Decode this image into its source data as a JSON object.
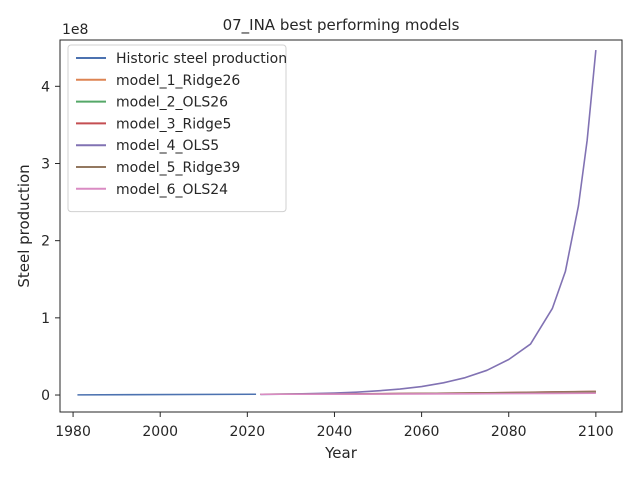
{
  "chart_data": {
    "type": "line",
    "title": "07_INA best performing models",
    "xlabel": "Year",
    "ylabel": "Steel production",
    "y_multiplier_label": "1e8",
    "xlim": [
      1977,
      2106
    ],
    "ylim": [
      -0.22,
      4.6
    ],
    "xticks": [
      1980,
      2000,
      2020,
      2040,
      2060,
      2080,
      2100
    ],
    "yticks": [
      0,
      1,
      2,
      3,
      4
    ],
    "legend_position": "upper left",
    "grid": false,
    "series": [
      {
        "name": "Historic steel production",
        "color": "#4c72b0",
        "x": [
          1981,
          2022
        ],
        "y": [
          0.002,
          0.01
        ]
      },
      {
        "name": "model_1_Ridge26",
        "color": "#dd8452",
        "x": [
          2023,
          2030,
          2040,
          2050,
          2060,
          2070,
          2080,
          2090,
          2100
        ],
        "y": [
          0.01,
          0.01,
          0.012,
          0.015,
          0.018,
          0.022,
          0.026,
          0.031,
          0.035
        ]
      },
      {
        "name": "model_2_OLS26",
        "color": "#55a868",
        "x": [
          2023,
          2030,
          2040,
          2050,
          2060,
          2070,
          2080,
          2090,
          2100
        ],
        "y": [
          0.01,
          0.011,
          0.013,
          0.016,
          0.019,
          0.023,
          0.027,
          0.032,
          0.037
        ]
      },
      {
        "name": "model_3_Ridge5",
        "color": "#c44e52",
        "x": [
          2023,
          2030,
          2040,
          2050,
          2060,
          2070,
          2080,
          2090,
          2100
        ],
        "y": [
          0.01,
          0.011,
          0.013,
          0.017,
          0.021,
          0.026,
          0.032,
          0.04,
          0.047
        ]
      },
      {
        "name": "model_4_OLS5",
        "color": "#8172b3",
        "x": [
          2023,
          2030,
          2040,
          2045,
          2050,
          2055,
          2060,
          2065,
          2070,
          2075,
          2080,
          2085,
          2090,
          2093,
          2096,
          2098,
          2100
        ],
        "y": [
          0.008,
          0.013,
          0.026,
          0.037,
          0.054,
          0.077,
          0.11,
          0.158,
          0.225,
          0.32,
          0.46,
          0.66,
          1.12,
          1.6,
          2.45,
          3.3,
          4.47
        ]
      },
      {
        "name": "model_5_Ridge39",
        "color": "#937860",
        "x": [
          2023,
          2030,
          2040,
          2050,
          2060,
          2070,
          2080,
          2090,
          2100
        ],
        "y": [
          0.01,
          0.011,
          0.013,
          0.016,
          0.02,
          0.025,
          0.031,
          0.038,
          0.045
        ]
      },
      {
        "name": "model_6_OLS24",
        "color": "#da8bc3",
        "x": [
          2023,
          2030,
          2040,
          2050,
          2060,
          2070,
          2080,
          2090,
          2100
        ],
        "y": [
          0.01,
          0.01,
          0.011,
          0.012,
          0.014,
          0.016,
          0.018,
          0.021,
          0.024
        ]
      }
    ]
  }
}
